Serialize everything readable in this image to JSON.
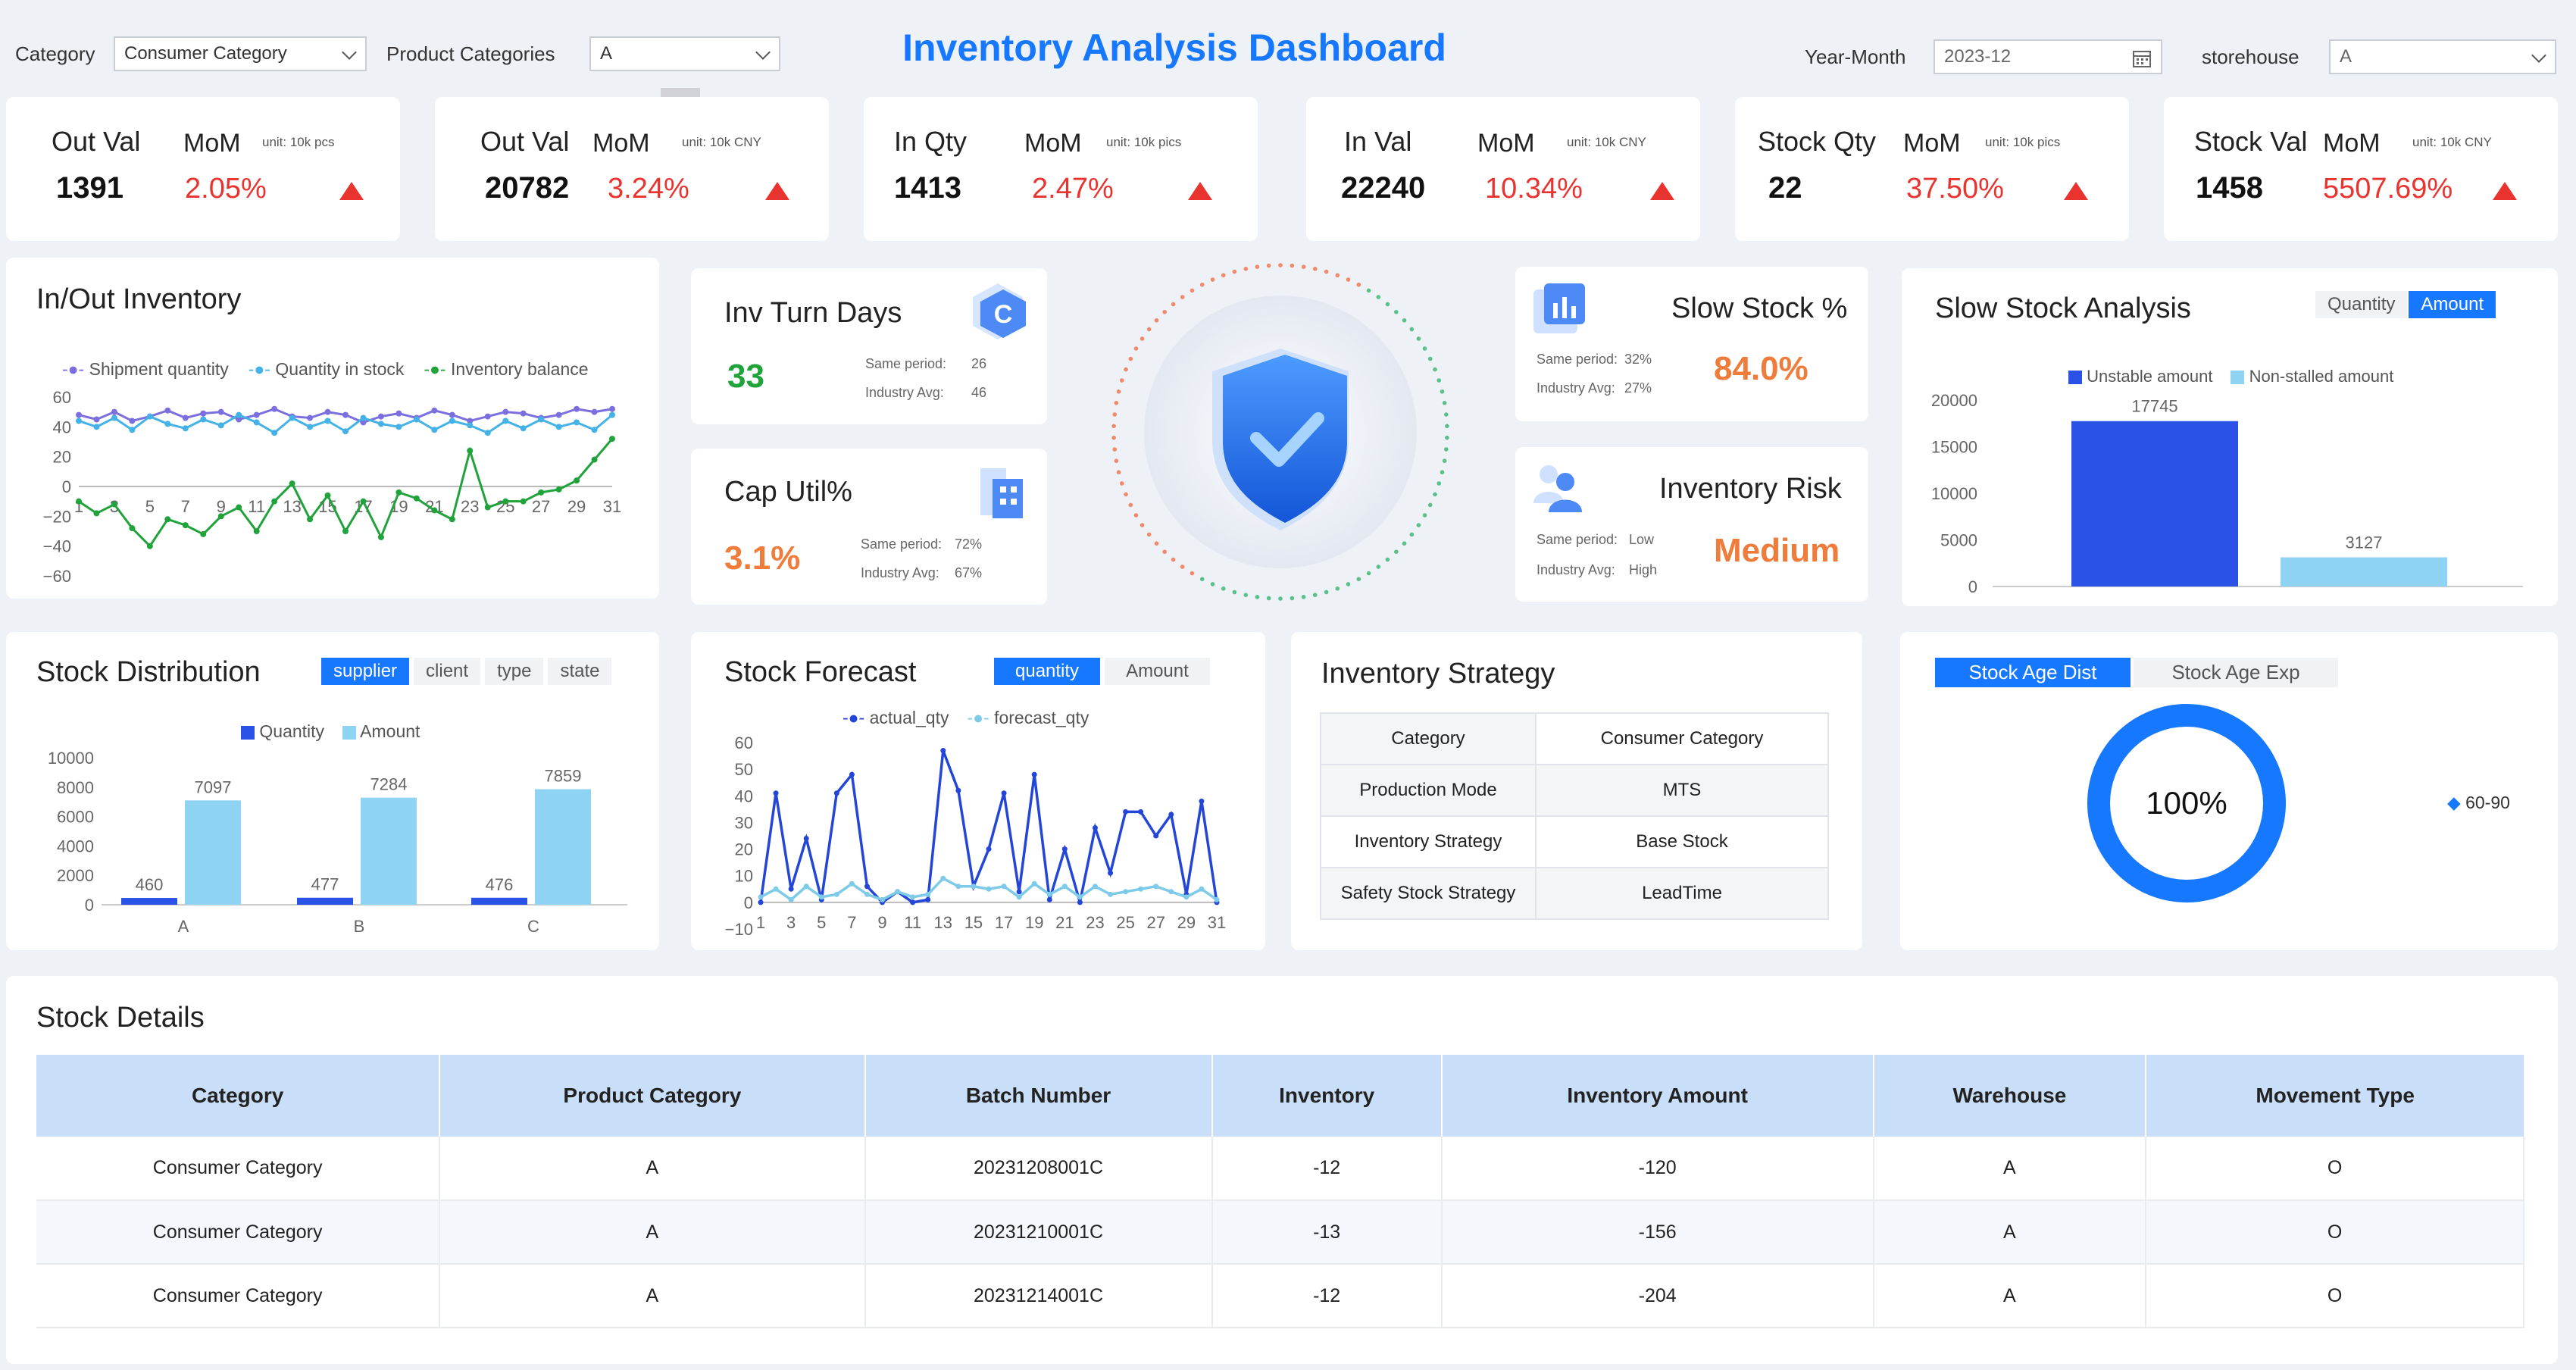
{
  "filters": {
    "category_label": "Category",
    "category_value": "Consumer Category",
    "product_label": "Product Categories",
    "product_value": "A",
    "ghost_value": "A",
    "year_month_label": "Year-Month",
    "year_month_value": "2023-12",
    "storehouse_label": "storehouse",
    "storehouse_value": "A"
  },
  "title": "Inventory Analysis Dashboard",
  "kpis": [
    {
      "name": "Out Val",
      "mom": "MoM",
      "unit": "unit:  10k pcs",
      "value": "1391",
      "pct": "2.05%"
    },
    {
      "name": "Out Val",
      "mom": "MoM",
      "unit": "unit:  10k CNY",
      "value": "20782",
      "pct": "3.24%"
    },
    {
      "name": "In Qty",
      "mom": "MoM",
      "unit": "unit:  10k pics",
      "value": "1413",
      "pct": "2.47%"
    },
    {
      "name": "In Val",
      "mom": "MoM",
      "unit": "unit:  10k CNY",
      "value": "22240",
      "pct": "10.34%"
    },
    {
      "name": "Stock Qty",
      "mom": "MoM",
      "unit": "unit:  10k pics",
      "value": "22",
      "pct": "37.50%"
    },
    {
      "name": "Stock Val",
      "mom": "MoM",
      "unit": "unit:  10k CNY",
      "value": "1458",
      "pct": "5507.69%"
    }
  ],
  "colors": {
    "accent": "#1677ff",
    "up": "#e8332f",
    "good": "#1fa33a",
    "warn": "#f07c3c",
    "dark_blue": "#2b52e6",
    "light_blue": "#8fd3f3"
  },
  "inv_turn": {
    "title": "Inv Turn Days",
    "value": "33",
    "same_label": "Same period:",
    "same_value": "26",
    "ind_label": "Industry Avg:",
    "ind_value": "46"
  },
  "cap_util": {
    "title": "Cap Util%",
    "value": "3.1%",
    "same_label": "Same period:",
    "same_value": "72%",
    "ind_label": "Industry Avg:",
    "ind_value": "67%"
  },
  "slow_stock": {
    "title": "Slow Stock %",
    "value": "84.0%",
    "same_label": "Same period:",
    "same_value": "32%",
    "ind_label": "Industry Avg:",
    "ind_value": "27%"
  },
  "inv_risk": {
    "title": "Inventory Risk",
    "value": "Medium",
    "same_label": "Same period:",
    "same_value": "Low",
    "ind_label": "Industry Avg:",
    "ind_value": "High"
  },
  "inout": {
    "title": "In/Out Inventory",
    "legend": [
      "Shipment quantity",
      "Quantity in stock",
      "Inventory balance"
    ]
  },
  "slow_analysis": {
    "title": "Slow Stock Analysis",
    "tabs": [
      "Quantity",
      "Amount"
    ],
    "legend": [
      "Unstable amount",
      "Non-stalled amount"
    ]
  },
  "stock_dist": {
    "title": "Stock Distribution",
    "tabs": [
      "supplier",
      "client",
      "type",
      "state"
    ],
    "legend": [
      "Quantity",
      "Amount"
    ]
  },
  "forecast": {
    "title": "Stock Forecast",
    "tabs": [
      "quantity",
      "Amount"
    ],
    "legend": [
      "actual_qty",
      "forecast_qty"
    ]
  },
  "strategy": {
    "title": "Inventory Strategy",
    "rows": [
      {
        "k": "Category",
        "v": "Consumer Category"
      },
      {
        "k": "Production Mode",
        "v": "MTS"
      },
      {
        "k": "Inventory Strategy",
        "v": "Base Stock"
      },
      {
        "k": "Safety Stock Strategy",
        "v": "LeadTime"
      }
    ]
  },
  "stock_age": {
    "tabs": [
      "Stock Age Dist",
      "Stock Age Exp"
    ],
    "center": "100%",
    "legend": "60-90"
  },
  "details": {
    "title": "Stock Details",
    "columns": [
      "Category",
      "Product Category",
      "Batch Number",
      "Inventory",
      "Inventory Amount",
      "Warehouse",
      "Movement Type"
    ],
    "rows": [
      [
        "Consumer Category",
        "A",
        "20231208001C",
        "-12",
        "-120",
        "A",
        "O"
      ],
      [
        "Consumer Category",
        "A",
        "20231210001C",
        "-13",
        "-156",
        "A",
        "O"
      ],
      [
        "Consumer Category",
        "A",
        "20231214001C",
        "-12",
        "-204",
        "A",
        "O"
      ]
    ]
  },
  "chart_data": [
    {
      "type": "line",
      "title": "In/Out Inventory",
      "x": [
        1,
        2,
        3,
        4,
        5,
        6,
        7,
        8,
        9,
        10,
        11,
        12,
        13,
        14,
        15,
        16,
        17,
        18,
        19,
        20,
        21,
        22,
        23,
        24,
        25,
        26,
        27,
        28,
        29,
        30,
        31
      ],
      "x_ticks": [
        "1",
        "3",
        "5",
        "7",
        "9",
        "11",
        "13",
        "15",
        "17",
        "19",
        "21",
        "23",
        "25",
        "27",
        "29",
        "31"
      ],
      "ylim": [
        -60,
        60
      ],
      "y_ticks": [
        60,
        40,
        20,
        0,
        -20,
        -40,
        -60
      ],
      "series": [
        {
          "name": "Shipment quantity",
          "color": "#7b6fe0",
          "values": [
            48,
            45,
            50,
            44,
            47,
            51,
            46,
            49,
            50,
            45,
            48,
            52,
            47,
            46,
            50,
            48,
            43,
            47,
            49,
            46,
            51,
            48,
            44,
            47,
            50,
            49,
            46,
            48,
            52,
            50,
            52
          ]
        },
        {
          "name": "Quantity in stock",
          "color": "#44b2e6",
          "values": [
            44,
            40,
            46,
            38,
            47,
            42,
            39,
            45,
            41,
            48,
            43,
            36,
            46,
            40,
            44,
            37,
            46,
            42,
            40,
            45,
            38,
            44,
            41,
            36,
            44,
            39,
            45,
            40,
            43,
            38,
            48
          ]
        },
        {
          "name": "Inventory balance",
          "color": "#1fa33a",
          "values": [
            -10,
            -18,
            -12,
            -28,
            -40,
            -22,
            -26,
            -32,
            -20,
            -14,
            -30,
            -10,
            2,
            -22,
            -6,
            -30,
            -10,
            -34,
            -4,
            -8,
            -16,
            -22,
            24,
            -14,
            -10,
            -10,
            -4,
            -2,
            4,
            18,
            32
          ]
        }
      ]
    },
    {
      "type": "bar",
      "title": "Slow Stock Analysis",
      "categories": [
        "Unstable amount",
        "Non-stalled amount"
      ],
      "values": [
        17745,
        3127
      ],
      "ylim": [
        0,
        20000
      ],
      "y_ticks": [
        20000,
        15000,
        10000,
        5000,
        0
      ]
    },
    {
      "type": "bar",
      "title": "Stock Distribution",
      "categories": [
        "A",
        "B",
        "C"
      ],
      "ylim": [
        0,
        10000
      ],
      "y_ticks": [
        10000,
        8000,
        6000,
        4000,
        2000,
        0
      ],
      "series": [
        {
          "name": "Quantity",
          "color": "#2b52e6",
          "values": [
            460,
            477,
            476
          ]
        },
        {
          "name": "Amount",
          "color": "#8fd3f3",
          "values": [
            7097,
            7284,
            7859
          ]
        }
      ]
    },
    {
      "type": "line",
      "title": "Stock Forecast",
      "x": [
        1,
        2,
        3,
        4,
        5,
        6,
        7,
        8,
        9,
        10,
        11,
        12,
        13,
        14,
        15,
        16,
        17,
        18,
        19,
        20,
        21,
        22,
        23,
        24,
        25,
        26,
        27,
        28,
        29,
        30,
        31
      ],
      "x_ticks": [
        "1",
        "3",
        "5",
        "7",
        "9",
        "11",
        "13",
        "15",
        "17",
        "19",
        "21",
        "23",
        "25",
        "27",
        "29",
        "31"
      ],
      "ylim": [
        -10,
        60
      ],
      "y_ticks": [
        60,
        50,
        40,
        30,
        20,
        10,
        0,
        -10
      ],
      "series": [
        {
          "name": "actual_qty",
          "color": "#2346d8",
          "values": [
            0,
            41,
            5,
            24,
            1,
            41,
            48,
            6,
            0,
            4,
            0,
            1,
            57,
            42,
            6,
            20,
            41,
            4,
            48,
            1,
            20,
            0,
            28,
            11,
            34,
            34,
            25,
            33,
            3,
            38,
            0
          ]
        },
        {
          "name": "forecast_qty",
          "color": "#7dcbe8",
          "values": [
            2,
            5,
            1,
            6,
            2,
            3,
            7,
            3,
            1,
            4,
            2,
            3,
            9,
            6,
            6,
            5,
            6,
            2,
            7,
            3,
            6,
            2,
            6,
            3,
            4,
            5,
            6,
            4,
            2,
            5,
            1
          ]
        }
      ]
    },
    {
      "type": "pie",
      "title": "Stock Age Dist",
      "categories": [
        "60-90"
      ],
      "values": [
        100
      ]
    }
  ]
}
